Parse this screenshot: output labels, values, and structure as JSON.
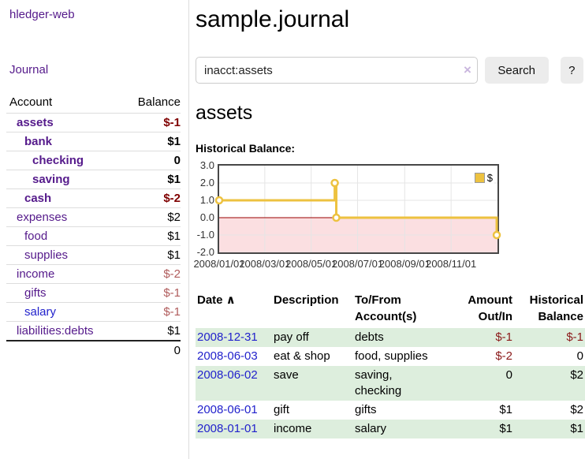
{
  "app": {
    "brand": "hledger-web"
  },
  "sidebar": {
    "journal_link": "Journal",
    "accounts_header": {
      "account": "Account",
      "balance": "Balance"
    },
    "accounts": [
      {
        "name": "assets",
        "indent": 1,
        "bold": true,
        "blue": false,
        "balance": "$-1",
        "balance_class": "neg-strong"
      },
      {
        "name": "bank",
        "indent": 2,
        "bold": true,
        "blue": false,
        "balance": "$1",
        "balance_class": ""
      },
      {
        "name": "checking",
        "indent": 3,
        "bold": true,
        "blue": false,
        "balance": "0",
        "balance_class": ""
      },
      {
        "name": "saving",
        "indent": 3,
        "bold": true,
        "blue": false,
        "balance": "$1",
        "balance_class": ""
      },
      {
        "name": "cash",
        "indent": 2,
        "bold": true,
        "blue": false,
        "balance": "$-2",
        "balance_class": "neg-strong"
      },
      {
        "name": "expenses",
        "indent": 1,
        "bold": false,
        "blue": false,
        "balance": "$2",
        "balance_class": ""
      },
      {
        "name": "food",
        "indent": 2,
        "bold": false,
        "blue": false,
        "balance": "$1",
        "balance_class": ""
      },
      {
        "name": "supplies",
        "indent": 2,
        "bold": false,
        "blue": false,
        "balance": "$1",
        "balance_class": ""
      },
      {
        "name": "income",
        "indent": 1,
        "bold": false,
        "blue": false,
        "balance": "$-2",
        "balance_class": "neg-soft"
      },
      {
        "name": "gifts",
        "indent": 2,
        "bold": false,
        "blue": false,
        "balance": "$-1",
        "balance_class": "neg-soft"
      },
      {
        "name": "salary",
        "indent": 2,
        "bold": false,
        "blue": true,
        "balance": "$-1",
        "balance_class": "neg-soft"
      },
      {
        "name": "liabilities:debts",
        "indent": 1,
        "bold": false,
        "blue": false,
        "balance": "$1",
        "balance_class": ""
      }
    ],
    "total": "0"
  },
  "header": {
    "title": "sample.journal"
  },
  "search": {
    "value": "inacct:assets",
    "clear_icon": "×",
    "button": "Search",
    "help_button": "?"
  },
  "account_page": {
    "title": "assets",
    "chart_label": "Historical Balance:"
  },
  "chart_data": {
    "type": "line",
    "title": "Historical Balance of assets",
    "step": true,
    "series": [
      {
        "name": "$",
        "color": "#edc240",
        "points": [
          [
            "2008-01-01",
            1
          ],
          [
            "2008-06-01",
            2
          ],
          [
            "2008-06-03",
            0
          ],
          [
            "2008-12-31",
            -1
          ]
        ]
      }
    ],
    "x_range": [
      "2008-01-01",
      "2009-01-01"
    ],
    "x_ticks": [
      {
        "date": "2008-03-01",
        "label": "2008/03/01"
      },
      {
        "date": "2008-05-01",
        "label": "2008/05/01"
      },
      {
        "date": "2008-07-01",
        "label": "2008/07/01"
      },
      {
        "date": "2008-09-01",
        "label": "2008/09/01"
      },
      {
        "date": "2008-11-01",
        "label": "2008/11/01"
      }
    ],
    "x_first_tick": {
      "date": "2008-01-01",
      "label": "2008/01/01"
    },
    "y_ticks": [
      3.0,
      2.0,
      1.0,
      0.0,
      -1.0,
      -2.0
    ],
    "ylim": [
      -2,
      3
    ],
    "grid_color": "#e5e5e5",
    "negative_region_color": "#fbdfe1",
    "zero_line_color": "#990000",
    "legend": {
      "label": "$",
      "position": "top-right",
      "swatch_color": "#edc240"
    }
  },
  "register": {
    "columns": [
      {
        "label": "Date",
        "numeric": false,
        "sorted": true
      },
      {
        "label": "Description",
        "numeric": false,
        "sorted": false
      },
      {
        "label": "To/From Account(s)",
        "numeric": false,
        "sorted": false
      },
      {
        "label": "Amount Out/In",
        "numeric": true,
        "sorted": false
      },
      {
        "label": "Historical Balance",
        "numeric": true,
        "sorted": false
      }
    ],
    "sort_caret": "∧",
    "rows": [
      {
        "date": "2008-12-31",
        "description": "pay off",
        "accounts_lines": [
          "debts"
        ],
        "amount": "$-1",
        "amount_class": "neg",
        "balance": "$-1",
        "balance_class": "neg"
      },
      {
        "date": "2008-06-03",
        "description": "eat & shop",
        "accounts_lines": [
          "food, supplies"
        ],
        "amount": "$-2",
        "amount_class": "neg",
        "balance": "0",
        "balance_class": ""
      },
      {
        "date": "2008-06-02",
        "description": "save",
        "accounts_lines": [
          "saving,",
          "checking"
        ],
        "amount": "0",
        "amount_class": "",
        "balance": "$2",
        "balance_class": ""
      },
      {
        "date": "2008-06-01",
        "description": "gift",
        "accounts_lines": [
          "gifts"
        ],
        "amount": "$1",
        "amount_class": "",
        "balance": "$2",
        "balance_class": ""
      },
      {
        "date": "2008-01-01",
        "description": "income",
        "accounts_lines": [
          "salary"
        ],
        "amount": "$1",
        "amount_class": "",
        "balance": "$1",
        "balance_class": ""
      }
    ]
  },
  "colors": {
    "accent_purple": "#551a8b",
    "link_blue": "#2222cc",
    "negative_red": "#8b1a1a",
    "row_green": "#ddeedd",
    "series_yellow": "#edc240"
  }
}
